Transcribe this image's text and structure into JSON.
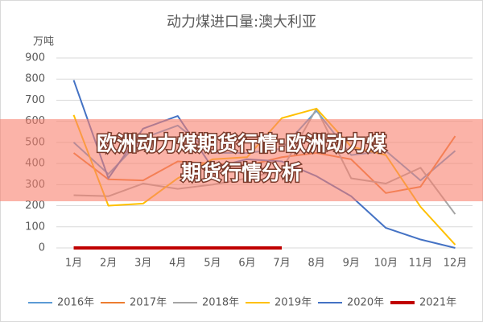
{
  "chart_data": {
    "type": "line",
    "title": "动力煤进口量:澳大利亚",
    "y_label": "万吨",
    "categories": [
      "1月",
      "2月",
      "3月",
      "4月",
      "5月",
      "6月",
      "7月",
      "8月",
      "9月",
      "10月",
      "11月",
      "12月"
    ],
    "series": [
      {
        "name": "2016年",
        "color": "#5b9bd5",
        "values": [
          500,
          350,
          520,
          580,
          450,
          450,
          470,
          650,
          440,
          460,
          320,
          460
        ]
      },
      {
        "name": "2017年",
        "color": "#ed7d31",
        "values": [
          450,
          325,
          320,
          410,
          400,
          390,
          430,
          450,
          420,
          260,
          290,
          530
        ]
      },
      {
        "name": "2018年",
        "color": "#a5a5a5",
        "values": [
          250,
          245,
          305,
          280,
          300,
          330,
          370,
          660,
          330,
          305,
          380,
          160
        ]
      },
      {
        "name": "2019年",
        "color": "#ffc000",
        "values": [
          630,
          200,
          210,
          330,
          420,
          430,
          615,
          660,
          480,
          440,
          195,
          15
        ]
      },
      {
        "name": "2020年",
        "color": "#4472c4",
        "values": [
          795,
          330,
          565,
          625,
          380,
          420,
          410,
          340,
          245,
          95,
          40,
          0
        ]
      },
      {
        "name": "2021年",
        "color": "#c00000",
        "values": [
          0,
          0,
          0,
          0,
          0,
          0,
          0,
          null,
          null,
          null,
          null,
          null
        ]
      }
    ],
    "ylim": [
      0,
      900
    ],
    "yticks": [
      0,
      100,
      200,
      300,
      400,
      500,
      600,
      700,
      800,
      900
    ],
    "grid": true,
    "legend": "bottom",
    "banner": [
      "欧洲动力煤期货行情:欧洲动力煤",
      "期货行情分析"
    ]
  }
}
